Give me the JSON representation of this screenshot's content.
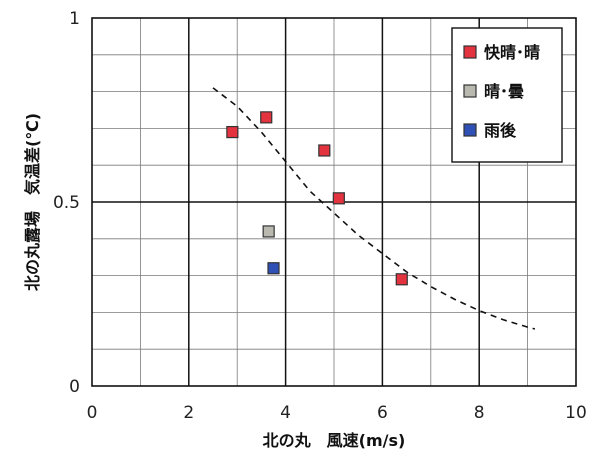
{
  "chart_data": {
    "type": "scatter",
    "xlabel": "北の丸　風速(m/s)",
    "ylabel": "北の丸露場　気温差(℃)",
    "xlim": [
      0,
      10
    ],
    "ylim": [
      0,
      1
    ],
    "x_ticks": [
      "0",
      "2",
      "4",
      "6",
      "8",
      "10"
    ],
    "y_ticks": [
      "0",
      "0.5",
      "1"
    ],
    "grid": true,
    "legend_position": "top-right",
    "series": [
      {
        "name": "快晴･晴",
        "color": "#e2333f",
        "points": [
          {
            "x": 2.9,
            "y": 0.69
          },
          {
            "x": 3.6,
            "y": 0.73
          },
          {
            "x": 4.8,
            "y": 0.64
          },
          {
            "x": 5.1,
            "y": 0.51
          },
          {
            "x": 6.4,
            "y": 0.29
          }
        ]
      },
      {
        "name": "晴･曇",
        "color": "#b9b9b0",
        "points": [
          {
            "x": 3.65,
            "y": 0.42
          }
        ]
      },
      {
        "name": "雨後",
        "color": "#2f50b4",
        "points": [
          {
            "x": 3.75,
            "y": 0.32
          }
        ]
      }
    ],
    "trendline": {
      "style": "dashed",
      "points": [
        {
          "x": 2.5,
          "y": 0.81
        },
        {
          "x": 3.0,
          "y": 0.76
        },
        {
          "x": 3.5,
          "y": 0.69
        },
        {
          "x": 4.0,
          "y": 0.61
        },
        {
          "x": 4.5,
          "y": 0.53
        },
        {
          "x": 5.0,
          "y": 0.47
        },
        {
          "x": 5.5,
          "y": 0.41
        },
        {
          "x": 6.0,
          "y": 0.36
        },
        {
          "x": 6.5,
          "y": 0.31
        },
        {
          "x": 7.0,
          "y": 0.27
        },
        {
          "x": 7.5,
          "y": 0.235
        },
        {
          "x": 8.0,
          "y": 0.205
        },
        {
          "x": 8.5,
          "y": 0.18
        },
        {
          "x": 9.0,
          "y": 0.16
        },
        {
          "x": 9.15,
          "y": 0.155
        }
      ]
    }
  }
}
